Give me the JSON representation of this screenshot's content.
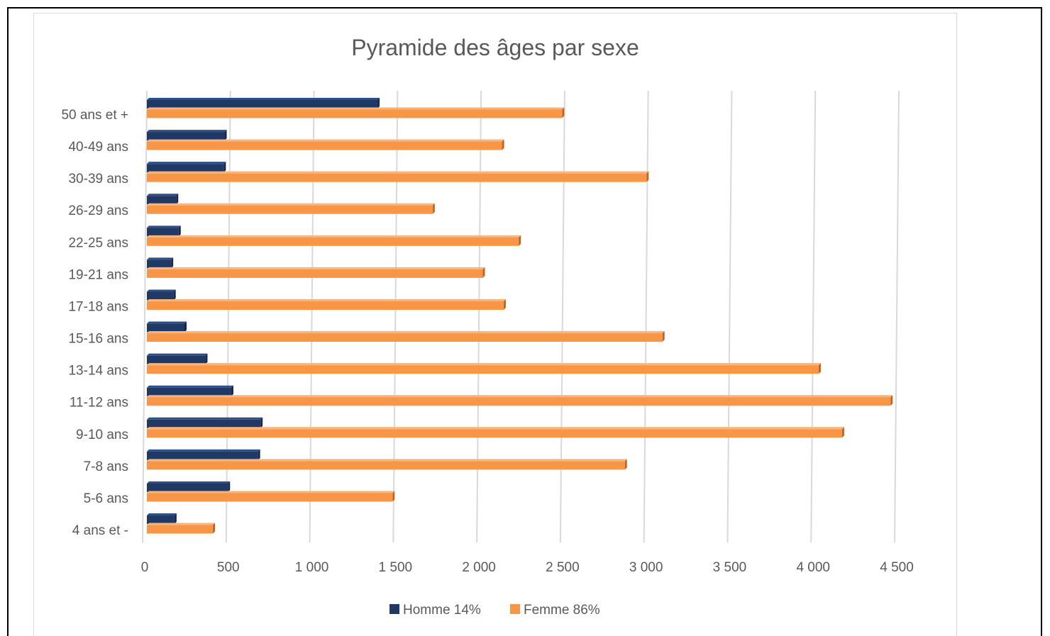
{
  "chart_data": {
    "type": "bar",
    "orientation": "horizontal",
    "title": "Pyramide des âges par sexe",
    "categories": [
      "4 ans et -",
      "5-6 ans",
      "7-8 ans",
      "9-10 ans",
      "11-12 ans",
      "13-14 ans",
      "15-16 ans",
      "17-18 ans",
      "19-21 ans",
      "22-25 ans",
      "26-29 ans",
      "30-39 ans",
      "40-49 ans",
      "50 ans et +"
    ],
    "series": [
      {
        "name": "Homme 14%",
        "color": "#203864",
        "values": [
          165,
          485,
          665,
          680,
          505,
          350,
          225,
          160,
          145,
          190,
          175,
          460,
          465,
          1380
        ]
      },
      {
        "name": "Femme 86%",
        "color": "#f79646",
        "values": [
          395,
          1470,
          2860,
          4160,
          4450,
          4020,
          3085,
          2135,
          2010,
          2225,
          1710,
          2990,
          2125,
          2485
        ]
      }
    ],
    "xlim": [
      0,
      4500
    ],
    "xticks": [
      0,
      500,
      1000,
      1500,
      2000,
      2500,
      3000,
      3500,
      4000,
      4500
    ],
    "xtick_labels": [
      "0",
      "500",
      "1 000",
      "1 500",
      "2 000",
      "2 500",
      "3 000",
      "3 500",
      "4 000",
      "4 500"
    ],
    "grid": "vertical",
    "legend_position": "bottom",
    "style": "3d-clustered-bar"
  }
}
